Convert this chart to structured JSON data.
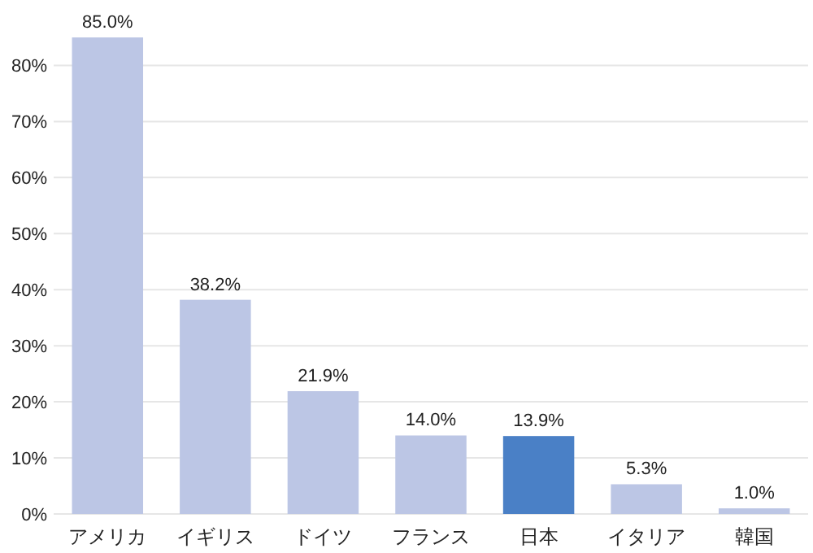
{
  "chart_data": {
    "type": "bar",
    "categories": [
      "アメリカ",
      "イギリス",
      "ドイツ",
      "フランス",
      "日本",
      "イタリア",
      "韓国"
    ],
    "values": [
      85.0,
      38.2,
      21.9,
      14.0,
      13.9,
      5.3,
      1.0
    ],
    "colors": [
      "#bcc6e5",
      "#bcc6e5",
      "#bcc6e5",
      "#bcc6e5",
      "#4a80c6",
      "#bcc6e5",
      "#bcc6e5"
    ],
    "value_labels": [
      "85.0%",
      "38.2%",
      "21.9%",
      "14.0%",
      "13.9%",
      "5.3%",
      "1.0%"
    ],
    "ylim": [
      0,
      85
    ],
    "yticks": [
      {
        "value": 0,
        "label": "0%"
      },
      {
        "value": 10,
        "label": "10%"
      },
      {
        "value": 20,
        "label": "20%"
      },
      {
        "value": 30,
        "label": "30%"
      },
      {
        "value": 40,
        "label": "40%"
      },
      {
        "value": 50,
        "label": "50%"
      },
      {
        "value": 60,
        "label": "60%"
      },
      {
        "value": 70,
        "label": "70%"
      },
      {
        "value": 80,
        "label": "80%"
      }
    ],
    "grid": "y"
  }
}
